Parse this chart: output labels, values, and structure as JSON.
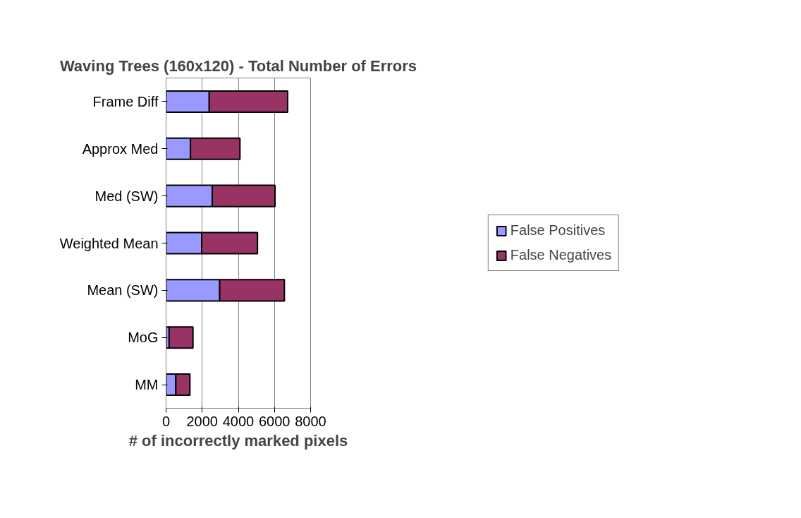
{
  "chart_data": {
    "type": "bar",
    "orientation": "horizontal",
    "stacked": true,
    "title": "Waving Trees (160x120) - Total Number of Errors",
    "xlabel": "# of incorrectly marked pixels",
    "categories": [
      "Frame Diff",
      "Approx Med",
      "Med (SW)",
      "Weighted Mean",
      "Mean (SW)",
      "MoG",
      "MM"
    ],
    "series": [
      {
        "name": "False Positives",
        "color": "#9999ff",
        "values": [
          2390,
          1350,
          2560,
          1970,
          2970,
          170,
          540
        ]
      },
      {
        "name": "False Negatives",
        "color": "#993366",
        "values": [
          4340,
          2740,
          3470,
          3090,
          3580,
          1320,
          780
        ]
      }
    ],
    "xlim": [
      0,
      8000
    ],
    "xticks": [
      0,
      2000,
      4000,
      6000,
      8000
    ],
    "grid": "x",
    "legend": "right"
  }
}
